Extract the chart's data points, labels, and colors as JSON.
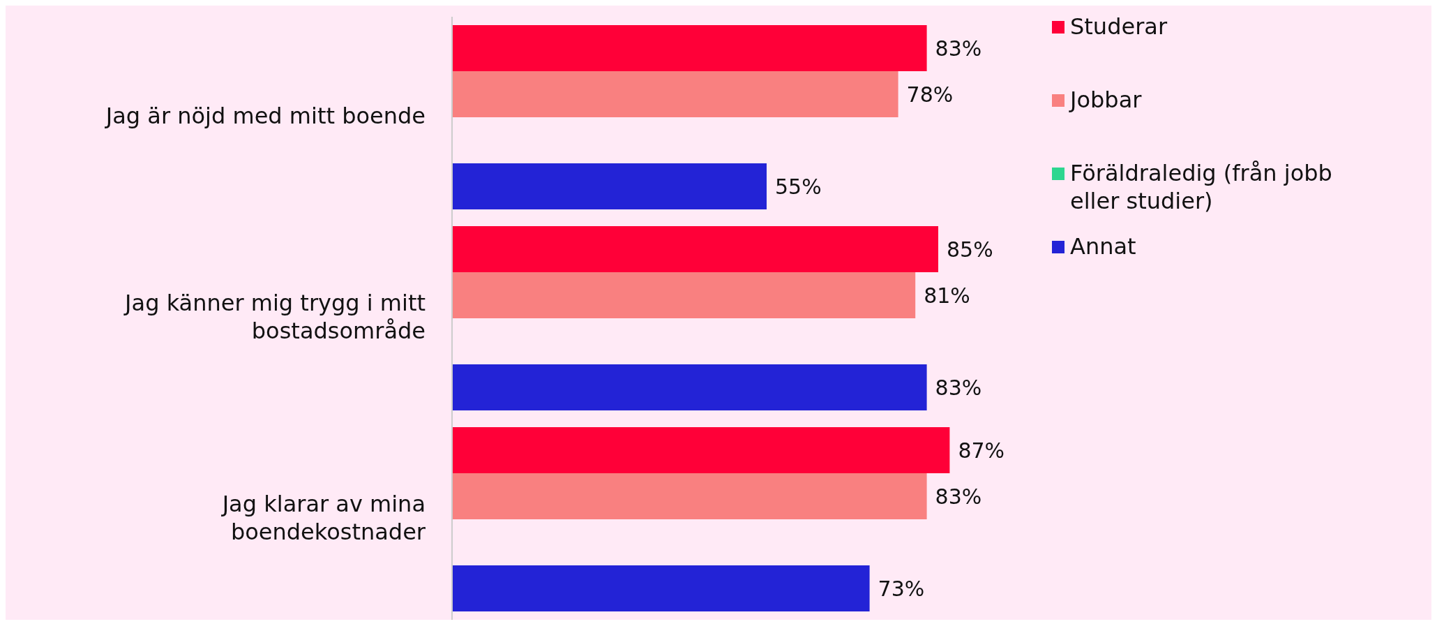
{
  "chart_data": {
    "type": "bar",
    "orientation": "horizontal",
    "categories": [
      "Jag är nöjd med mitt boende",
      "Jag känner mig trygg i mitt bostadsområde",
      "Jag klarar av mina boendekostnader"
    ],
    "series": [
      {
        "name": "Studerar",
        "color": "#ff0038",
        "values": [
          83,
          85,
          87
        ],
        "value_labels": [
          "83%",
          "85%",
          "87%"
        ]
      },
      {
        "name": "Jobbar",
        "color": "#f98080",
        "values": [
          78,
          81,
          83
        ],
        "value_labels": [
          "78%",
          "81%",
          "83%"
        ]
      },
      {
        "name": "Föräldraledig (från jobb eller studier)",
        "color": "#2dd68f",
        "values": [
          null,
          null,
          null
        ],
        "value_labels": [
          null,
          null,
          null
        ]
      },
      {
        "name": "Annat",
        "color": "#2323d6",
        "values": [
          55,
          83,
          73
        ],
        "value_labels": [
          "55%",
          "83%",
          "73%"
        ]
      }
    ],
    "legend": "top right",
    "grid": false
  }
}
